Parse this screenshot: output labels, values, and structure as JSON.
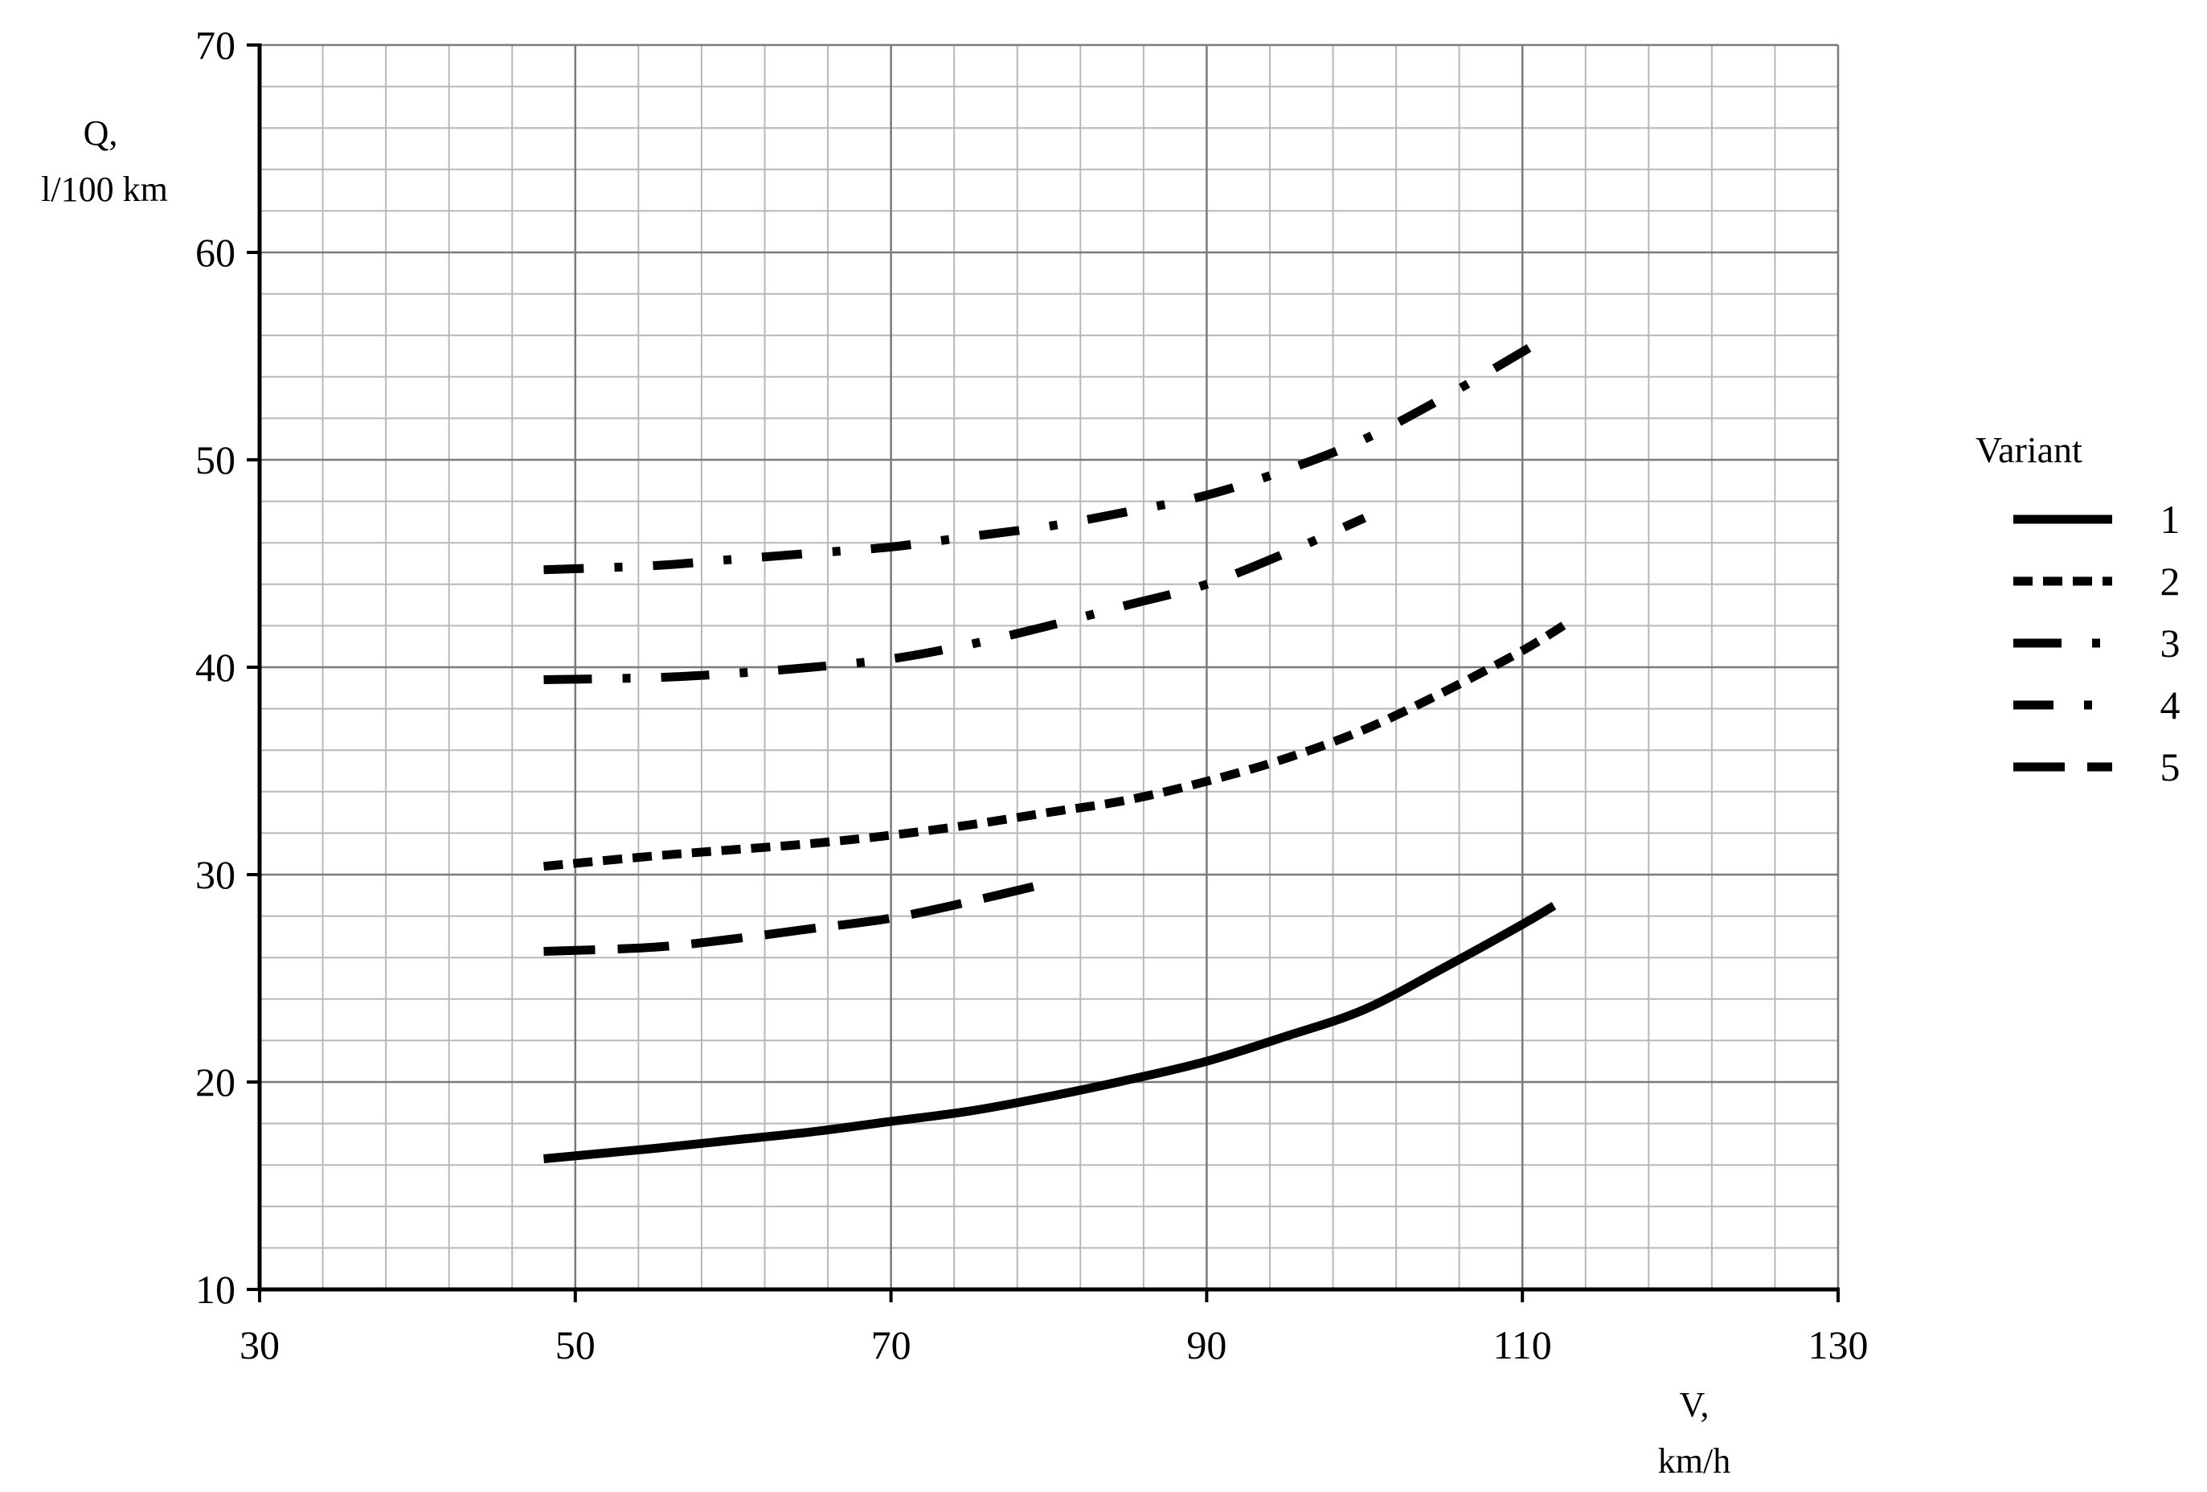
{
  "chart_data": {
    "type": "line",
    "title": "",
    "xlabel": [
      "V,",
      "km/h"
    ],
    "ylabel": [
      "Q,",
      "l/100 km"
    ],
    "xlim": [
      30,
      130
    ],
    "ylim": [
      10,
      70
    ],
    "x_major_ticks": [
      30,
      50,
      70,
      90,
      110,
      130
    ],
    "y_major_ticks": [
      10,
      20,
      30,
      40,
      50,
      60,
      70
    ],
    "x_tick_labels": [
      "30",
      "50",
      "70",
      "90",
      "110",
      "130"
    ],
    "y_tick_labels": [
      "10",
      "20",
      "30",
      "40",
      "50",
      "60",
      "70"
    ],
    "grid": true,
    "x_minor_step": 4,
    "y_minor_step": 2,
    "legend_title": "Variant",
    "legend_position": "right",
    "series": [
      {
        "name": "1",
        "style": "solid",
        "x": [
          48,
          55,
          60,
          65,
          70,
          75,
          80,
          85,
          90,
          95,
          100,
          105,
          110,
          112
        ],
        "y": [
          16.3,
          16.8,
          17.2,
          17.6,
          18.1,
          18.6,
          19.3,
          20.1,
          21.0,
          22.2,
          23.5,
          25.5,
          27.6,
          28.5
        ]
      },
      {
        "name": "2",
        "style": "dash",
        "x": [
          48,
          55,
          60,
          65,
          70,
          75,
          80,
          85,
          90,
          95,
          100,
          105,
          110,
          113
        ],
        "y": [
          30.4,
          30.9,
          31.2,
          31.5,
          31.9,
          32.4,
          33.0,
          33.6,
          34.5,
          35.6,
          37.0,
          38.8,
          40.8,
          42.2
        ]
      },
      {
        "name": "3",
        "style": "dash-dot-dot",
        "x": [
          48,
          55,
          60,
          65,
          70,
          75,
          80,
          85,
          90,
          95,
          100
        ],
        "y": [
          39.4,
          39.5,
          39.7,
          40.0,
          40.4,
          41.1,
          42.0,
          43.0,
          44.0,
          45.5,
          47.2
        ]
      },
      {
        "name": "4",
        "style": "dash-dot",
        "x": [
          48,
          55,
          60,
          65,
          70,
          75,
          80,
          85,
          90,
          95,
          100,
          105,
          110,
          111
        ],
        "y": [
          44.7,
          44.9,
          45.2,
          45.5,
          45.8,
          46.3,
          46.8,
          47.5,
          48.3,
          49.5,
          51.0,
          53.0,
          55.2,
          55.7
        ]
      },
      {
        "name": "5",
        "style": "long-dash",
        "x": [
          48,
          55,
          60,
          65,
          70,
          75,
          80
        ],
        "y": [
          26.3,
          26.5,
          26.9,
          27.4,
          27.9,
          28.7,
          29.6
        ]
      }
    ]
  }
}
